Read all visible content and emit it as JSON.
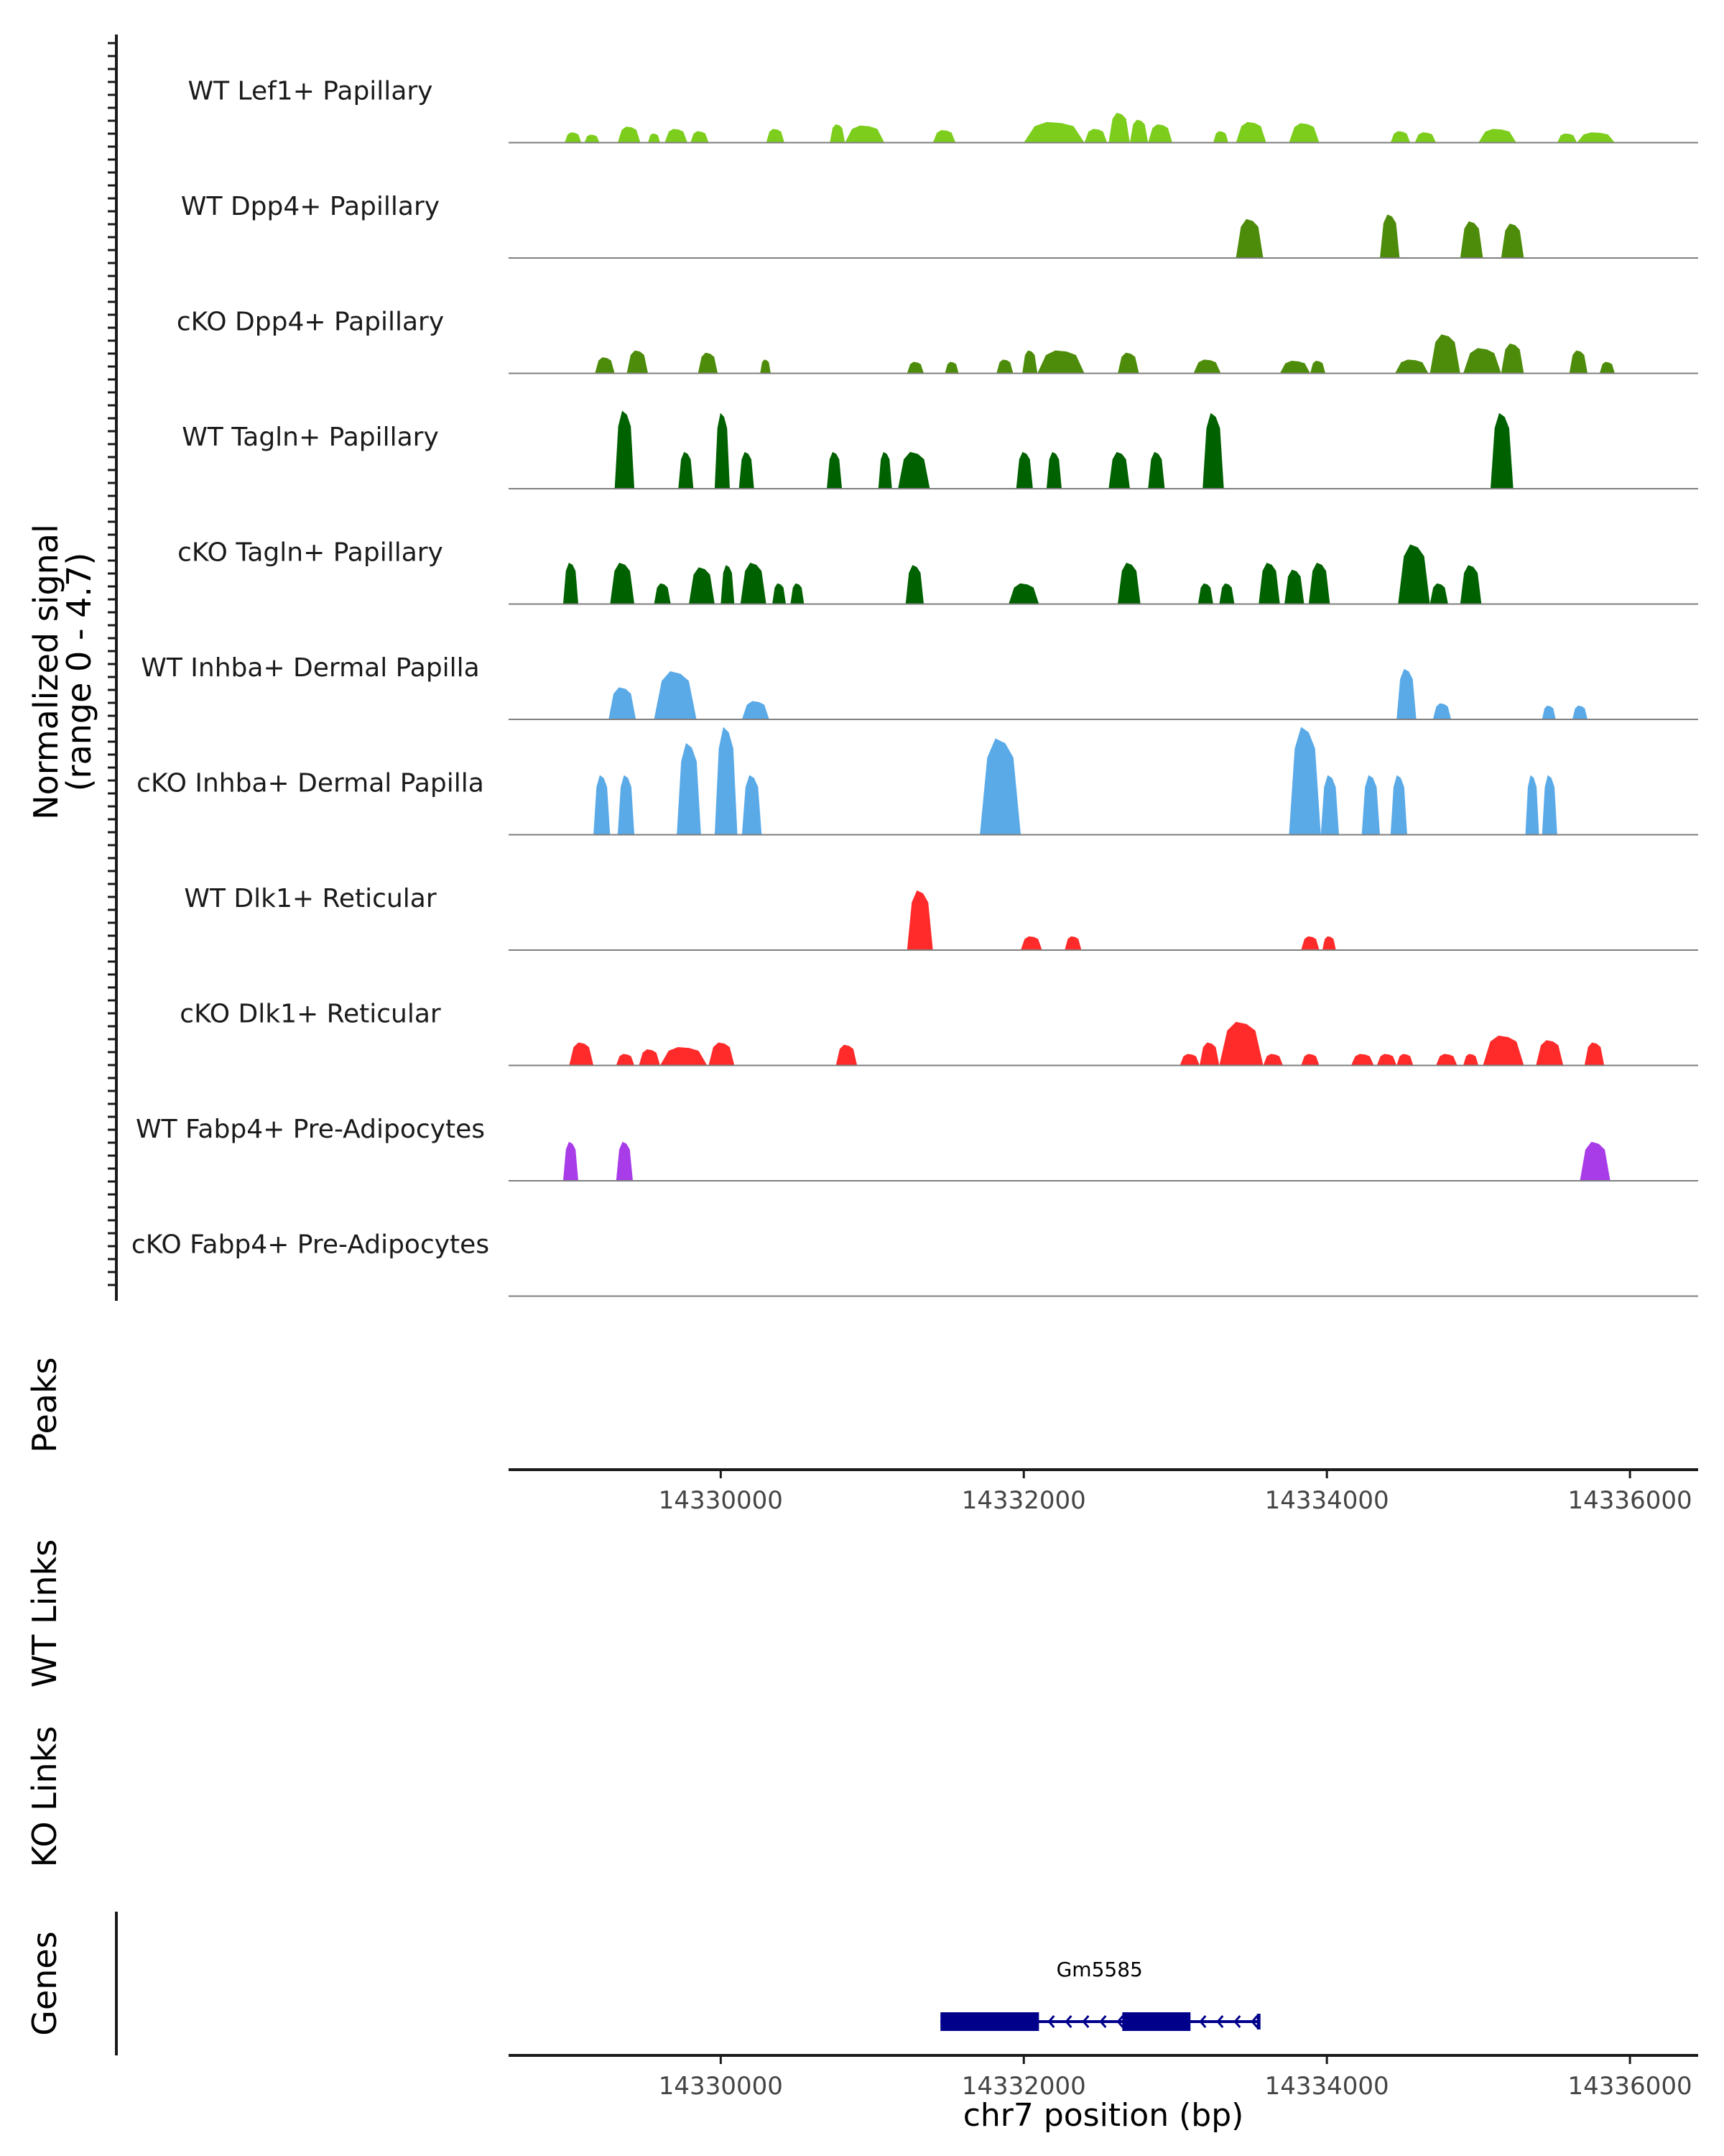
{
  "chart_data": {
    "type": "area",
    "title": "",
    "chromosome": "chr7",
    "xlim": [
      14328600,
      14336450
    ],
    "ylim": [
      0,
      4.7
    ],
    "ylabel_line1": "Normalized signal",
    "ylabel_line2": "(range 0 - 4.7)",
    "xlabel": "chr7 position (bp)",
    "x_ticks": [
      {
        "value": 14330000,
        "label": "14330000"
      },
      {
        "value": 14332000,
        "label": "14332000"
      },
      {
        "value": 14334000,
        "label": "14334000"
      },
      {
        "value": 14336000,
        "label": "14336000"
      }
    ],
    "panel_labels": {
      "peaks": "Peaks",
      "wt_links": "WT Links",
      "ko_links": "KO Links",
      "genes": "Genes"
    },
    "series": [
      {
        "name": "WT Lef1+ Papillary",
        "color": "#7ccd1c",
        "peaks": [
          [
            14328970,
            14329080,
            0.45
          ],
          [
            14329100,
            14329200,
            0.35
          ],
          [
            14329320,
            14329470,
            0.7
          ],
          [
            14329520,
            14329600,
            0.4
          ],
          [
            14329630,
            14329780,
            0.6
          ],
          [
            14329800,
            14329920,
            0.5
          ],
          [
            14330300,
            14330420,
            0.6
          ],
          [
            14330720,
            14330820,
            0.8
          ],
          [
            14330820,
            14331080,
            0.75
          ],
          [
            14331400,
            14331550,
            0.55
          ],
          [
            14332000,
            14332400,
            0.9
          ],
          [
            14332400,
            14332550,
            0.6
          ],
          [
            14332560,
            14332700,
            1.3
          ],
          [
            14332700,
            14332820,
            1.0
          ],
          [
            14332820,
            14332980,
            0.8
          ],
          [
            14333250,
            14333350,
            0.5
          ],
          [
            14333400,
            14333600,
            0.9
          ],
          [
            14333750,
            14333950,
            0.85
          ],
          [
            14334420,
            14334550,
            0.5
          ],
          [
            14334580,
            14334720,
            0.45
          ],
          [
            14335000,
            14335250,
            0.6
          ],
          [
            14335520,
            14335650,
            0.4
          ],
          [
            14335650,
            14335900,
            0.45
          ]
        ]
      },
      {
        "name": "WT Dpp4+ Papillary",
        "color": "#4d8c0a",
        "peaks": [
          [
            14333400,
            14333580,
            1.7
          ],
          [
            14334350,
            14334480,
            1.9
          ],
          [
            14334880,
            14335030,
            1.6
          ],
          [
            14335150,
            14335300,
            1.5
          ]
        ]
      },
      {
        "name": "cKO Dpp4+ Papillary",
        "color": "#4d8c0a",
        "peaks": [
          [
            14329170,
            14329300,
            0.7
          ],
          [
            14329380,
            14329520,
            1.0
          ],
          [
            14329850,
            14329980,
            0.9
          ],
          [
            14330260,
            14330330,
            0.6
          ],
          [
            14331230,
            14331340,
            0.5
          ],
          [
            14331480,
            14331570,
            0.5
          ],
          [
            14331820,
            14331930,
            0.6
          ],
          [
            14331990,
            14332090,
            1.0
          ],
          [
            14332090,
            14332400,
            1.0
          ],
          [
            14332620,
            14332760,
            0.9
          ],
          [
            14333120,
            14333300,
            0.6
          ],
          [
            14333690,
            14333890,
            0.55
          ],
          [
            14333890,
            14333990,
            0.55
          ],
          [
            14334450,
            14334670,
            0.6
          ],
          [
            14334680,
            14334880,
            1.7
          ],
          [
            14334900,
            14335150,
            1.1
          ],
          [
            14335150,
            14335300,
            1.3
          ],
          [
            14335600,
            14335720,
            1.0
          ],
          [
            14335800,
            14335900,
            0.5
          ]
        ]
      },
      {
        "name": "WT Tagln+ Papillary",
        "color": "#006100",
        "peaks": [
          [
            14329300,
            14329430,
            3.4
          ],
          [
            14329720,
            14329820,
            1.6
          ],
          [
            14329960,
            14330060,
            3.3
          ],
          [
            14330120,
            14330220,
            1.6
          ],
          [
            14330700,
            14330800,
            1.6
          ],
          [
            14331040,
            14331130,
            1.6
          ],
          [
            14331170,
            14331380,
            1.6
          ],
          [
            14331950,
            14332060,
            1.6
          ],
          [
            14332150,
            14332250,
            1.6
          ],
          [
            14332560,
            14332700,
            1.6
          ],
          [
            14332820,
            14332930,
            1.6
          ],
          [
            14333180,
            14333320,
            3.3
          ],
          [
            14335080,
            14335230,
            3.3
          ]
        ]
      },
      {
        "name": "cKO Tagln+ Papillary",
        "color": "#006100",
        "peaks": [
          [
            14328960,
            14329060,
            1.8
          ],
          [
            14329270,
            14329430,
            1.8
          ],
          [
            14329560,
            14329670,
            0.9
          ],
          [
            14329790,
            14329960,
            1.6
          ],
          [
            14330000,
            14330090,
            1.7
          ],
          [
            14330130,
            14330300,
            1.8
          ],
          [
            14330340,
            14330430,
            0.9
          ],
          [
            14330460,
            14330550,
            0.9
          ],
          [
            14331220,
            14331340,
            1.7
          ],
          [
            14331900,
            14332100,
            0.9
          ],
          [
            14332620,
            14332770,
            1.8
          ],
          [
            14333150,
            14333250,
            0.9
          ],
          [
            14333290,
            14333390,
            0.9
          ],
          [
            14333550,
            14333690,
            1.8
          ],
          [
            14333720,
            14333850,
            1.5
          ],
          [
            14333880,
            14334020,
            1.8
          ],
          [
            14334470,
            14334680,
            2.6
          ],
          [
            14334680,
            14334800,
            0.9
          ],
          [
            14334880,
            14335020,
            1.7
          ]
        ]
      },
      {
        "name": "WT Inhba+ Dermal Papilla",
        "color": "#5aaae8",
        "peaks": [
          [
            14329260,
            14329440,
            1.4
          ],
          [
            14329560,
            14329840,
            2.1
          ],
          [
            14330140,
            14330320,
            0.8
          ],
          [
            14334460,
            14334590,
            2.2
          ],
          [
            14334700,
            14334820,
            0.7
          ],
          [
            14335420,
            14335510,
            0.6
          ],
          [
            14335620,
            14335720,
            0.6
          ]
        ]
      },
      {
        "name": "cKO Inhba+ Dermal Papilla",
        "color": "#5aaae8",
        "peaks": [
          [
            14329160,
            14329270,
            2.6
          ],
          [
            14329320,
            14329430,
            2.6
          ],
          [
            14329710,
            14329870,
            4.0
          ],
          [
            14329960,
            14330110,
            4.7
          ],
          [
            14330140,
            14330270,
            2.6
          ],
          [
            14331710,
            14331980,
            4.2
          ],
          [
            14333750,
            14333960,
            4.7
          ],
          [
            14333960,
            14334080,
            2.6
          ],
          [
            14334230,
            14334350,
            2.6
          ],
          [
            14334420,
            14334530,
            2.6
          ],
          [
            14335310,
            14335400,
            2.6
          ],
          [
            14335420,
            14335520,
            2.6
          ]
        ]
      },
      {
        "name": "WT Dlk1+ Reticular",
        "color": "#ff2a2a",
        "peaks": [
          [
            14331230,
            14331400,
            2.6
          ],
          [
            14331980,
            14332120,
            0.6
          ],
          [
            14332270,
            14332380,
            0.6
          ],
          [
            14333830,
            14333950,
            0.6
          ],
          [
            14333970,
            14334060,
            0.6
          ]
        ]
      },
      {
        "name": "cKO Dlk1+ Reticular",
        "color": "#ff2a2a",
        "peaks": [
          [
            14329000,
            14329160,
            1.0
          ],
          [
            14329310,
            14329430,
            0.5
          ],
          [
            14329460,
            14329600,
            0.7
          ],
          [
            14329600,
            14329910,
            0.8
          ],
          [
            14329920,
            14330090,
            1.0
          ],
          [
            14330760,
            14330900,
            0.9
          ],
          [
            14333030,
            14333160,
            0.5
          ],
          [
            14333160,
            14333290,
            1.0
          ],
          [
            14333290,
            14333580,
            1.9
          ],
          [
            14333580,
            14333710,
            0.5
          ],
          [
            14333830,
            14333950,
            0.5
          ],
          [
            14334160,
            14334310,
            0.5
          ],
          [
            14334330,
            14334460,
            0.5
          ],
          [
            14334460,
            14334570,
            0.5
          ],
          [
            14334720,
            14334860,
            0.5
          ],
          [
            14334900,
            14335000,
            0.5
          ],
          [
            14335030,
            14335300,
            1.3
          ],
          [
            14335380,
            14335560,
            1.1
          ],
          [
            14335700,
            14335830,
            1.0
          ]
        ]
      },
      {
        "name": "WT Fabp4+ Pre-Adipocytes",
        "color": "#a83ce8",
        "peaks": [
          [
            14328960,
            14329060,
            1.7
          ],
          [
            14329310,
            14329420,
            1.7
          ],
          [
            14335670,
            14335870,
            1.7
          ]
        ]
      },
      {
        "name": "cKO Fabp4+ Pre-Adipocytes",
        "color": "#a83ce8",
        "peaks": []
      }
    ],
    "gene": {
      "name": "Gm5585",
      "color": "#00008b",
      "strand": "-",
      "start": 14331450,
      "end": 14333550,
      "exons": [
        [
          14331450,
          14332100
        ],
        [
          14332650,
          14333100
        ]
      ]
    }
  }
}
